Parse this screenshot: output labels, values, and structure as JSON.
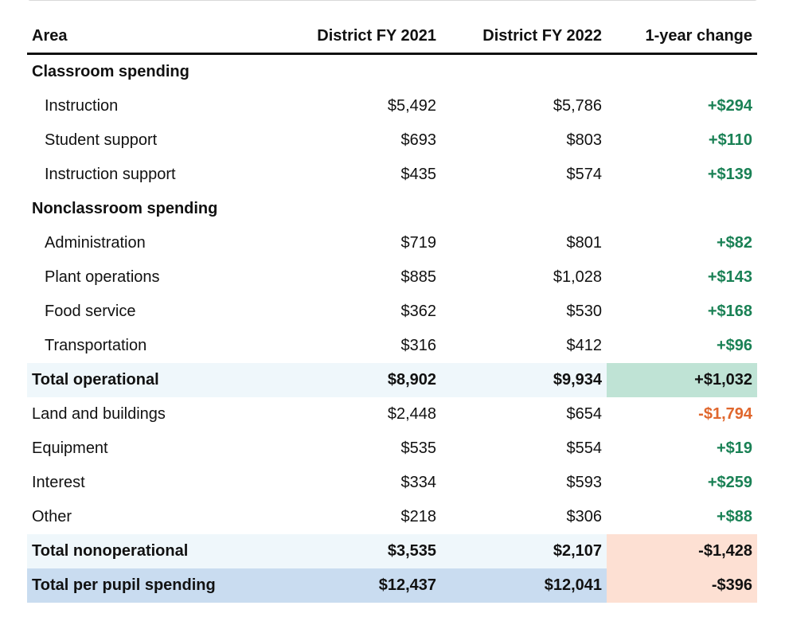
{
  "table": {
    "headers": {
      "area": "Area",
      "fy2021": "District FY 2021",
      "fy2022": "District FY 2022",
      "change": "1-year change"
    },
    "classroom": {
      "title": "Classroom spending",
      "rows": [
        {
          "area": "Instruction",
          "fy2021": "$5,492",
          "fy2022": "$5,786",
          "change": "+$294"
        },
        {
          "area": "Student support",
          "fy2021": "$693",
          "fy2022": "$803",
          "change": "+$110"
        },
        {
          "area": "Instruction support",
          "fy2021": "$435",
          "fy2022": "$574",
          "change": "+$139"
        }
      ]
    },
    "nonclassroom": {
      "title": "Nonclassroom spending",
      "rows": [
        {
          "area": "Administration",
          "fy2021": "$719",
          "fy2022": "$801",
          "change": "+$82"
        },
        {
          "area": "Plant operations",
          "fy2021": "$885",
          "fy2022": "$1,028",
          "change": "+$143"
        },
        {
          "area": "Food service",
          "fy2021": "$362",
          "fy2022": "$530",
          "change": "+$168"
        },
        {
          "area": "Transportation",
          "fy2021": "$316",
          "fy2022": "$412",
          "change": "+$96"
        }
      ]
    },
    "total_operational": {
      "area": "Total operational",
      "fy2021": "$8,902",
      "fy2022": "$9,934",
      "change": "+$1,032"
    },
    "nonoperational": [
      {
        "area": "Land and buildings",
        "fy2021": "$2,448",
        "fy2022": "$654",
        "change": "-$1,794"
      },
      {
        "area": "Equipment",
        "fy2021": "$535",
        "fy2022": "$554",
        "change": "+$19"
      },
      {
        "area": "Interest",
        "fy2021": "$334",
        "fy2022": "$593",
        "change": "+$259"
      },
      {
        "area": "Other",
        "fy2021": "$218",
        "fy2022": "$306",
        "change": "+$88"
      }
    ],
    "total_nonoperational": {
      "area": "Total nonoperational",
      "fy2021": "$3,535",
      "fy2022": "$2,107",
      "change": "-$1,428"
    },
    "total_per_pupil": {
      "area": "Total per pupil spending",
      "fy2021": "$12,437",
      "fy2022": "$12,041",
      "change": "-$396"
    }
  },
  "colors": {
    "positive": "#1a8155",
    "negative": "#e0672d",
    "total_row_bg": "#eff7fb",
    "grand_total_bg": "#c9dcf0",
    "increase_highlight": "#bfe3d5",
    "decrease_highlight": "#fde0d3"
  }
}
